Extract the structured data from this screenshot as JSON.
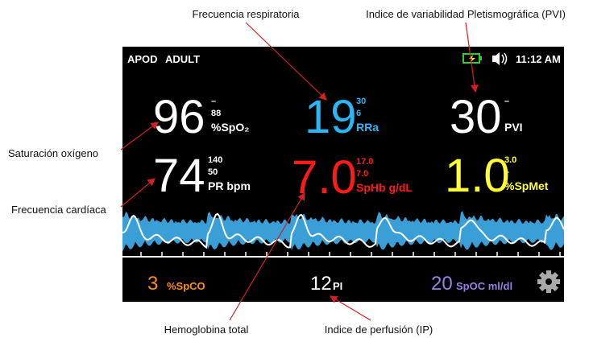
{
  "annotations": {
    "respiratory_rate": "Frecuencia respiratoria",
    "pvi": "Indice de variabilidad Pletismográfica (PVI)",
    "oxygen_saturation": "Saturación oxígeno",
    "heart_rate": "Frecuencia  cardíaca",
    "total_hemoglobin": "Hemoglobina total",
    "perfusion_index": "Indice de perfusión (IP)"
  },
  "status_bar": {
    "mode": "APOD",
    "patient": "ADULT",
    "time": "11:12 AM"
  },
  "parameters": [
    {
      "value": "96",
      "high": "–",
      "low": "88",
      "label": "%SpO₂",
      "color": "#ffffff"
    },
    {
      "value": "19",
      "high": "30",
      "low": "6",
      "label": "RRa",
      "color": "#29b6f6"
    },
    {
      "value": "30",
      "high": "–",
      "label": "PVI",
      "color": "#ffffff"
    },
    {
      "value": "74",
      "high": "140",
      "low": "50",
      "label": "PR bpm",
      "color": "#ffffff"
    },
    {
      "value": "7.0",
      "high": "17.0",
      "low": "7.0",
      "label": "SpHb g/dL",
      "color": "#ff1a1a"
    },
    {
      "value": "1.0",
      "high": "3.0",
      "low": "–",
      "label": "%SpMet",
      "color": "#ffff33"
    }
  ],
  "bottom_bar": [
    {
      "value": "3",
      "label": "%SpCO",
      "color": "#ff8c1a"
    },
    {
      "value": "12",
      "label": "PI",
      "color": "#ffffff"
    },
    {
      "value": "20",
      "label": "SpOC ml/dl",
      "color": "#9b7fe6"
    }
  ]
}
